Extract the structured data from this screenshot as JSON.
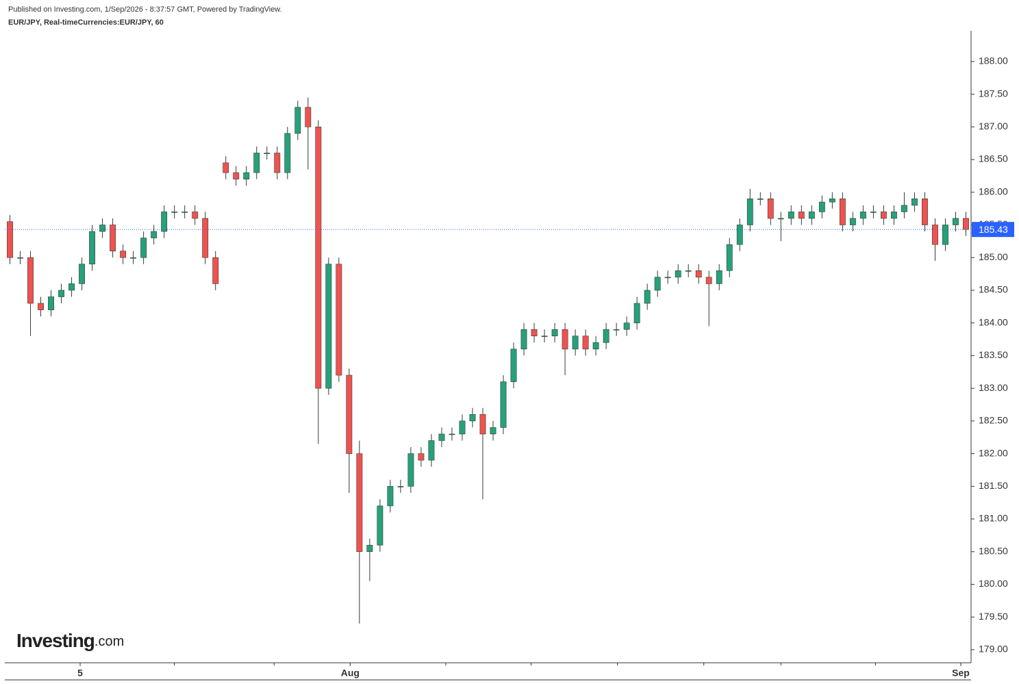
{
  "chart_data": {
    "type": "candlestick",
    "subtitle": "Published on Investing.com, 1/Sep/2026 - 8:37:57 GMT, Powered by TradingView.",
    "title": "EUR/JPY, Real-timeCurrencies:EUR/JPY, 60",
    "logo_brand": "Investing",
    "logo_suffix": ".com",
    "up_color": "#26a17b",
    "down_color": "#ef5350",
    "open": [
      185.55,
      185.0,
      185.0,
      184.3,
      184.2,
      184.4,
      184.5,
      184.6,
      184.9,
      185.4,
      185.5,
      185.1,
      185.0,
      185.0,
      185.3,
      185.4,
      185.7,
      185.7,
      185.7,
      185.6,
      185.0,
      186.45,
      186.3,
      186.2,
      186.3,
      186.6,
      186.6,
      186.3,
      186.9,
      187.3,
      187.0,
      183.0,
      184.9,
      183.2,
      182.0,
      180.5,
      180.6,
      181.2,
      181.5,
      181.5,
      182.0,
      181.9,
      182.2,
      182.3,
      182.3,
      182.5,
      182.6,
      182.3,
      182.4,
      183.1,
      183.6,
      183.9,
      183.8,
      183.8,
      183.9,
      183.6,
      183.8,
      183.6,
      183.7,
      183.9,
      183.9,
      184.0,
      184.3,
      184.5,
      184.7,
      184.7,
      184.8,
      184.8,
      184.7,
      184.6,
      184.8,
      185.2,
      185.5,
      185.9,
      185.9,
      185.6,
      185.6,
      185.7,
      185.6,
      185.7,
      185.85,
      185.9,
      185.5,
      185.6,
      185.7,
      185.7,
      185.6,
      185.7,
      185.8,
      185.9,
      185.5,
      185.2,
      185.5,
      185.6
    ],
    "high": [
      185.65,
      185.1,
      185.1,
      184.4,
      184.5,
      184.6,
      184.7,
      185.0,
      185.5,
      185.6,
      185.6,
      185.2,
      185.1,
      185.4,
      185.5,
      185.8,
      185.8,
      185.8,
      185.8,
      185.7,
      185.1,
      186.55,
      186.4,
      186.4,
      186.7,
      186.7,
      186.7,
      187.0,
      187.4,
      187.45,
      187.1,
      185.0,
      185.0,
      183.3,
      182.2,
      180.7,
      181.3,
      181.6,
      181.6,
      182.1,
      182.1,
      182.3,
      182.4,
      182.4,
      182.6,
      182.7,
      182.7,
      182.5,
      183.2,
      183.7,
      184.0,
      184.0,
      183.9,
      184.0,
      184.0,
      183.9,
      183.9,
      183.8,
      184.0,
      184.0,
      184.1,
      184.4,
      184.6,
      184.8,
      184.8,
      184.9,
      184.9,
      184.9,
      184.8,
      184.9,
      185.3,
      185.6,
      186.05,
      186.0,
      186.0,
      185.7,
      185.8,
      185.8,
      185.8,
      185.95,
      186.0,
      186.0,
      185.7,
      185.8,
      185.8,
      185.8,
      185.8,
      186.0,
      186.0,
      186.0,
      185.6,
      185.6,
      185.7,
      185.7
    ],
    "low": [
      184.9,
      184.9,
      183.8,
      184.1,
      184.1,
      184.3,
      184.4,
      184.5,
      184.8,
      185.3,
      185.0,
      184.9,
      184.9,
      184.9,
      185.2,
      185.3,
      185.6,
      185.6,
      185.5,
      184.9,
      184.5,
      186.2,
      186.1,
      186.1,
      186.2,
      186.5,
      186.2,
      186.2,
      186.8,
      186.35,
      182.15,
      182.9,
      183.1,
      181.4,
      179.4,
      180.05,
      180.5,
      181.1,
      181.4,
      181.4,
      181.8,
      181.8,
      182.1,
      182.2,
      182.2,
      182.4,
      181.3,
      182.2,
      182.3,
      183.0,
      183.5,
      183.7,
      183.7,
      183.7,
      183.2,
      183.5,
      183.5,
      183.5,
      183.6,
      183.8,
      183.8,
      183.9,
      184.2,
      184.4,
      184.6,
      184.6,
      184.7,
      184.6,
      183.95,
      184.5,
      184.7,
      185.1,
      185.4,
      185.8,
      185.5,
      185.25,
      185.5,
      185.5,
      185.5,
      185.6,
      185.75,
      185.4,
      185.4,
      185.5,
      185.6,
      185.5,
      185.5,
      185.6,
      185.7,
      185.4,
      184.95,
      185.1,
      185.4,
      185.33
    ],
    "close": [
      185.0,
      185.0,
      184.3,
      184.2,
      184.4,
      184.5,
      184.6,
      184.9,
      185.4,
      185.5,
      185.1,
      185.0,
      185.0,
      185.3,
      185.4,
      185.7,
      185.7,
      185.7,
      185.6,
      185.0,
      184.6,
      186.3,
      186.2,
      186.3,
      186.6,
      186.6,
      186.3,
      186.9,
      187.3,
      187.0,
      183.0,
      184.9,
      183.2,
      182.0,
      180.5,
      180.6,
      181.2,
      181.5,
      181.5,
      182.0,
      181.9,
      182.2,
      182.3,
      182.3,
      182.5,
      182.6,
      182.3,
      182.4,
      183.1,
      183.6,
      183.9,
      183.8,
      183.8,
      183.9,
      183.6,
      183.8,
      183.6,
      183.7,
      183.9,
      183.9,
      184.0,
      184.3,
      184.5,
      184.7,
      184.7,
      184.8,
      184.8,
      184.7,
      184.6,
      184.8,
      185.2,
      185.5,
      185.9,
      185.9,
      185.6,
      185.6,
      185.7,
      185.6,
      185.7,
      185.85,
      185.9,
      185.5,
      185.6,
      185.7,
      185.7,
      185.6,
      185.7,
      185.8,
      185.9,
      185.5,
      185.2,
      185.5,
      185.6,
      185.43
    ],
    "last_price": 185.43,
    "last_price_color": "#2962ff",
    "xlim": [
      0,
      94
    ],
    "xticks": [
      {
        "value": 7.33,
        "label": "5"
      },
      {
        "value": 33.6,
        "label": "Aug"
      },
      {
        "value": 93.0,
        "label": "Sep"
      }
    ],
    "minor_xticks": [
      16.5,
      26.2,
      42.9,
      51.2,
      59.6,
      68.0,
      75.5,
      84.7
    ],
    "ylim": [
      178.8,
      188.47
    ],
    "yticks": [
      {
        "value": 179,
        "label": "179.00"
      },
      {
        "value": 179.5,
        "label": "179.50"
      },
      {
        "value": 180,
        "label": "180.00"
      },
      {
        "value": 180.5,
        "label": "180.50"
      },
      {
        "value": 181,
        "label": "181.00"
      },
      {
        "value": 181.5,
        "label": "181.50"
      },
      {
        "value": 182,
        "label": "182.00"
      },
      {
        "value": 182.5,
        "label": "182.50"
      },
      {
        "value": 183,
        "label": "183.00"
      },
      {
        "value": 183.5,
        "label": "183.50"
      },
      {
        "value": 184,
        "label": "184.00"
      },
      {
        "value": 184.5,
        "label": "184.50"
      },
      {
        "value": 185,
        "label": "185.00"
      },
      {
        "value": 185.5,
        "label": "185.50"
      },
      {
        "value": 186,
        "label": "186.00"
      },
      {
        "value": 186.5,
        "label": "186.50"
      },
      {
        "value": 187,
        "label": "187.00"
      },
      {
        "value": 187.5,
        "label": "187.50"
      },
      {
        "value": 188,
        "label": "188.00"
      }
    ]
  }
}
